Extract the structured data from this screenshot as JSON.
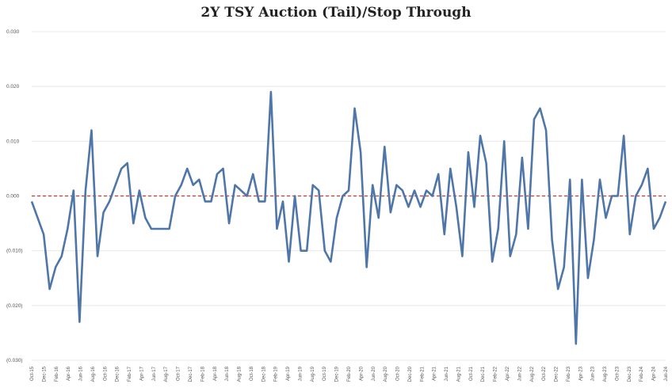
{
  "chart_data": {
    "type": "line",
    "title": "2Y TSY Auction (Tail)/Stop Through",
    "xlabel": "",
    "ylabel": "",
    "ylim": [
      -0.03,
      0.03
    ],
    "yticks": [
      0.03,
      0.02,
      0.01,
      0.0,
      -0.01,
      -0.02,
      -0.03
    ],
    "ytick_labels": [
      "0.030",
      "0.020",
      "0.010",
      "0.000",
      "(0.010)",
      "(0.020)",
      "(0.030)"
    ],
    "grid": true,
    "legend": "none",
    "reference_line": {
      "y": 0.0,
      "style": "dashed",
      "color": "#c0392b"
    },
    "series_color": "#4f76a8",
    "x_tick_labels": [
      "Oct-15",
      "Dec-15",
      "Feb-16",
      "Apr-16",
      "Jun-16",
      "Aug-16",
      "Oct-16",
      "Dec-16",
      "Feb-17",
      "Apr-17",
      "Jun-17",
      "Aug-17",
      "Oct-17",
      "Dec-17",
      "Feb-18",
      "Apr-18",
      "Jun-18",
      "Aug-18",
      "Oct-18",
      "Dec-18",
      "Feb-19",
      "Apr-19",
      "Jun-19",
      "Aug-19",
      "Oct-19",
      "Dec-19",
      "Feb-20",
      "Apr-20",
      "Jun-20",
      "Aug-20",
      "Oct-20",
      "Dec-20",
      "Feb-21",
      "Apr-21",
      "Jun-21",
      "Aug-21",
      "Oct-21",
      "Dec-21",
      "Feb-22",
      "Apr-22",
      "Jun-22",
      "Aug-22",
      "Oct-22",
      "Dec-22",
      "Feb-23",
      "Apr-23",
      "Jun-23",
      "Aug-23",
      "Oct-23",
      "Dec-23",
      "Feb-24",
      "Apr-24",
      "Jun-24"
    ],
    "values": [
      -0.001,
      -0.004,
      -0.007,
      -0.017,
      -0.013,
      -0.011,
      -0.006,
      0.001,
      -0.023,
      0.001,
      0.012,
      -0.011,
      -0.003,
      -0.001,
      0.002,
      0.005,
      0.006,
      -0.005,
      0.001,
      -0.004,
      -0.006,
      -0.006,
      -0.006,
      -0.006,
      0.0,
      0.002,
      0.005,
      0.002,
      0.003,
      -0.001,
      -0.001,
      0.004,
      0.005,
      -0.005,
      0.002,
      0.001,
      0.0,
      0.004,
      -0.001,
      -0.001,
      0.019,
      -0.006,
      -0.001,
      -0.012,
      0.0,
      -0.01,
      -0.01,
      0.002,
      0.001,
      -0.01,
      -0.012,
      -0.004,
      0.0,
      0.001,
      0.016,
      0.008,
      -0.013,
      0.002,
      -0.004,
      0.009,
      -0.003,
      0.002,
      0.001,
      -0.002,
      0.001,
      -0.002,
      0.001,
      0.0,
      0.004,
      -0.007,
      0.005,
      -0.002,
      -0.011,
      0.008,
      -0.002,
      0.011,
      0.006,
      -0.012,
      -0.006,
      0.01,
      -0.011,
      -0.007,
      0.007,
      -0.006,
      0.014,
      0.016,
      0.012,
      -0.008,
      -0.017,
      -0.013,
      0.003,
      -0.027,
      0.003,
      -0.015,
      -0.008,
      0.003,
      -0.004,
      0.0,
      0.0,
      0.011,
      -0.007,
      0.0,
      0.002,
      0.005,
      -0.006,
      -0.004,
      -0.001
    ]
  }
}
